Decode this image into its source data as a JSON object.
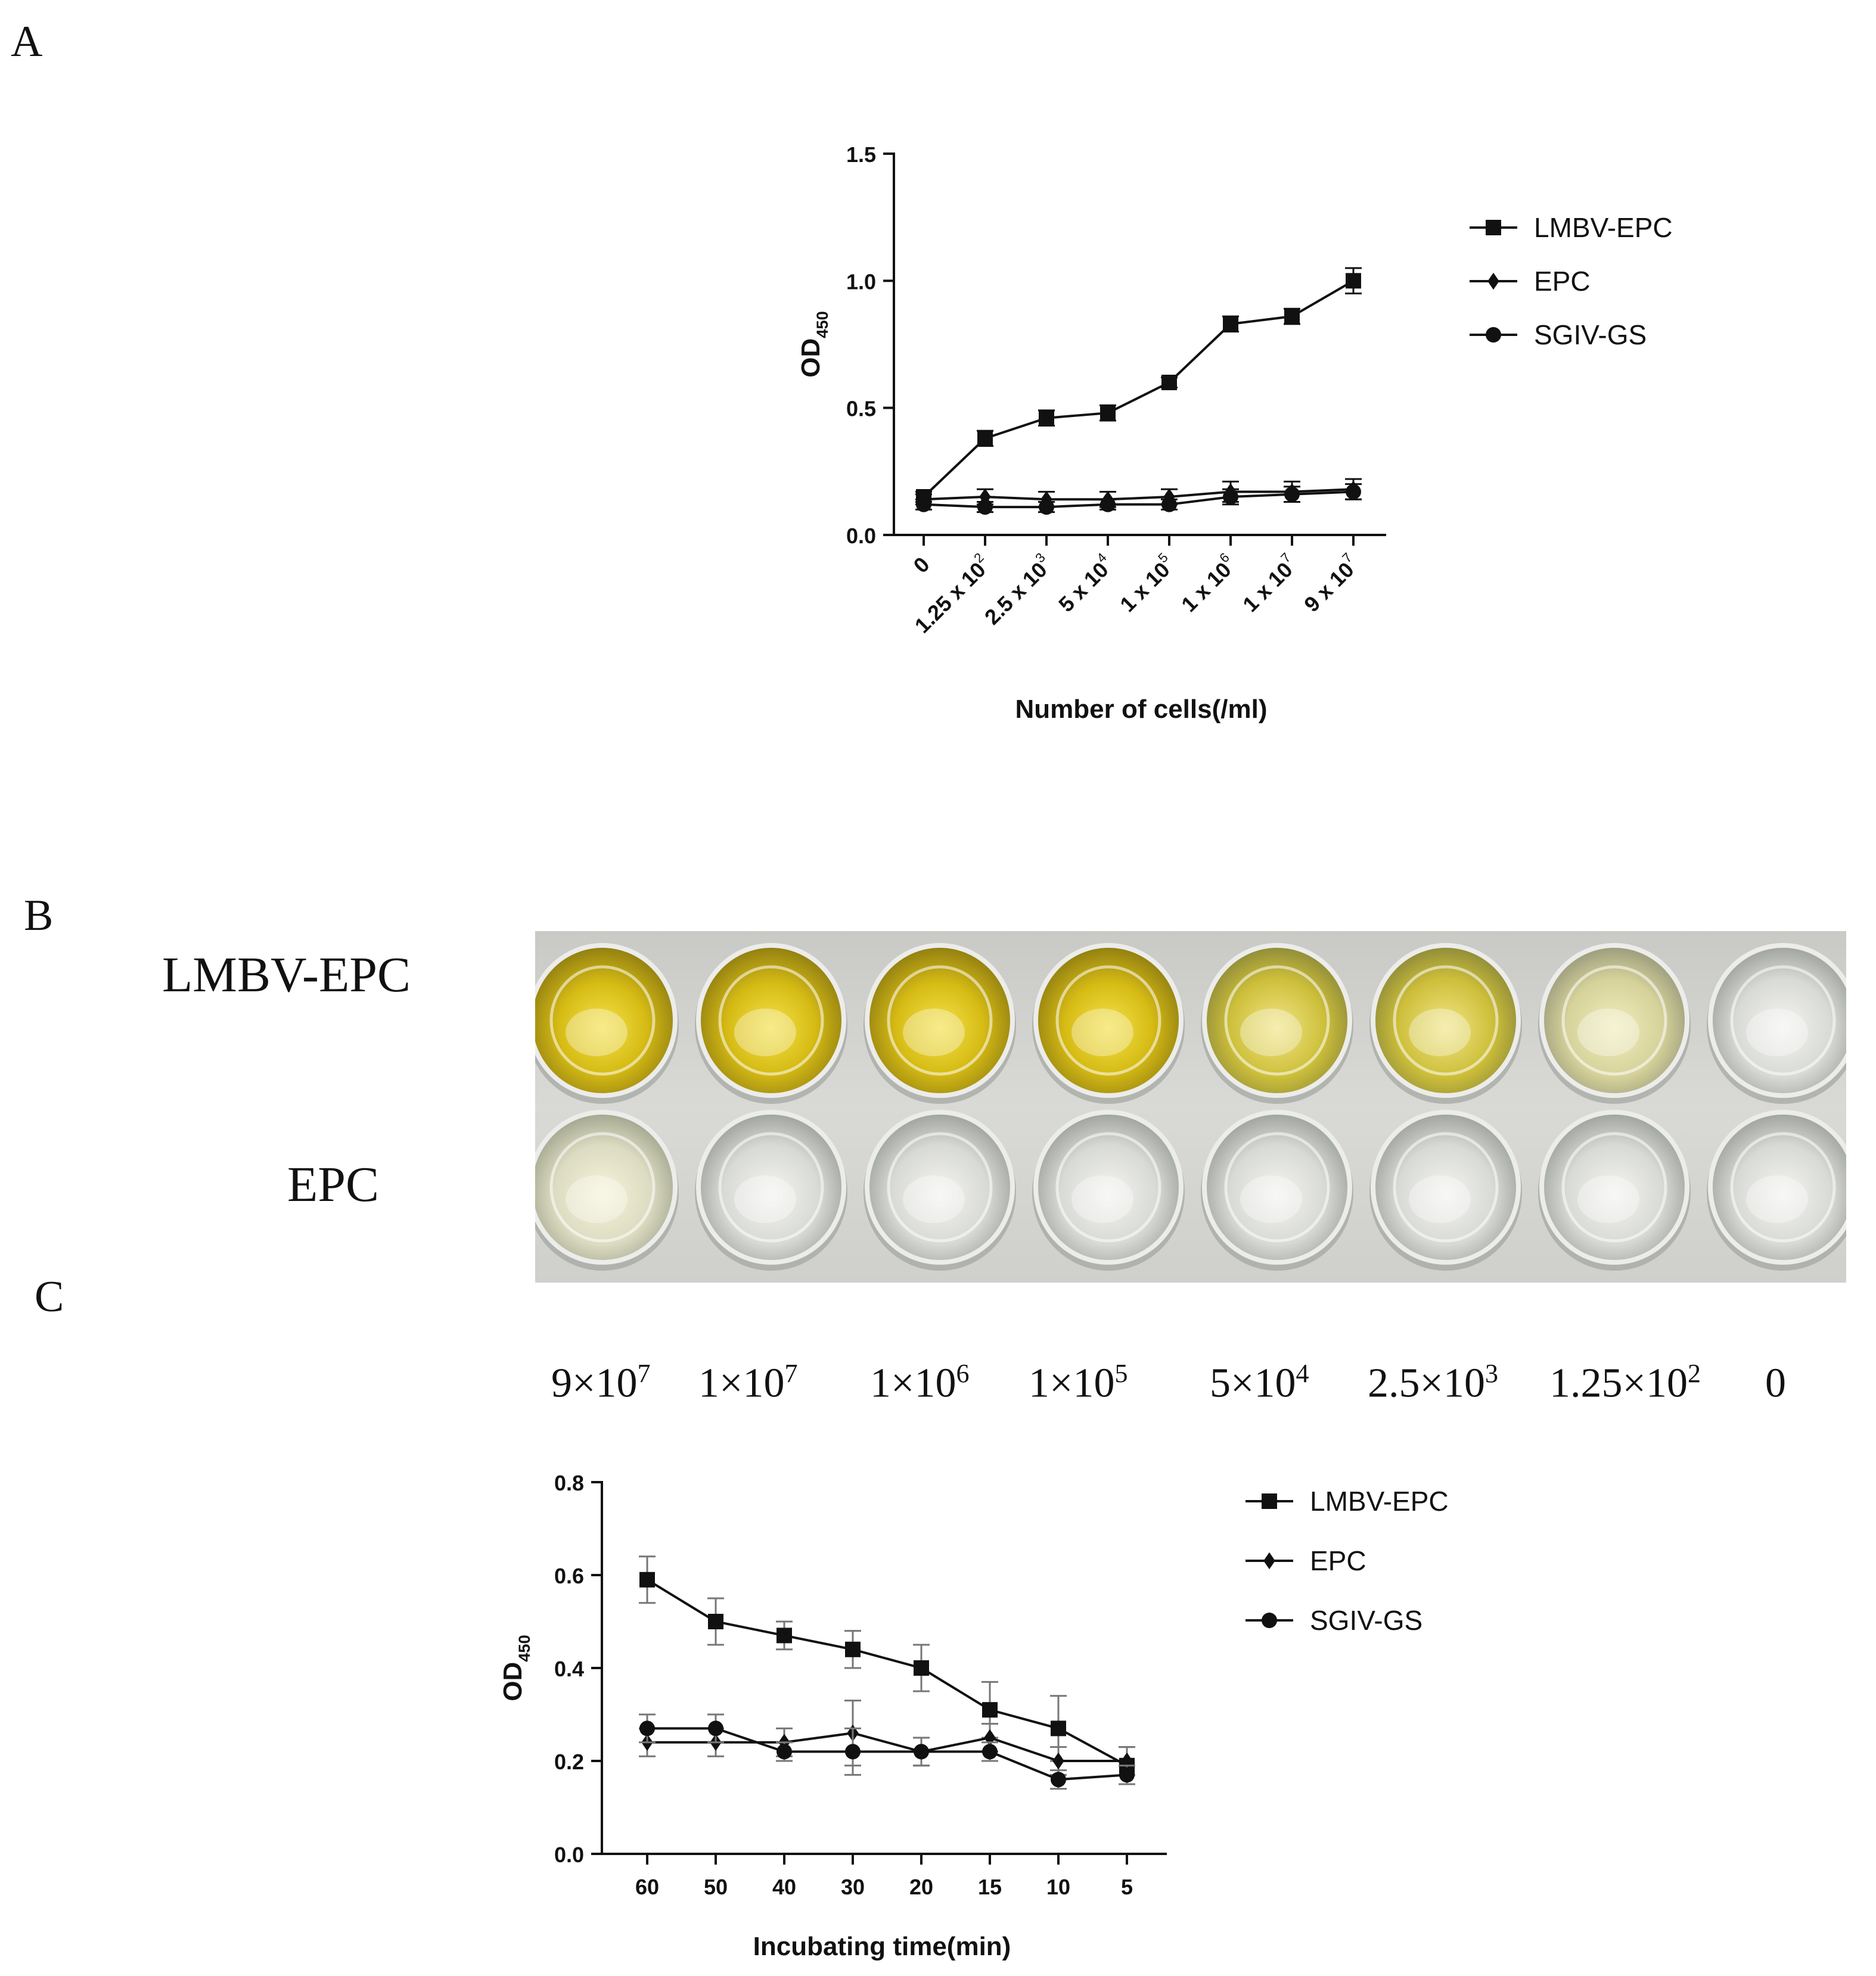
{
  "panels": {
    "a": "A",
    "b": "B",
    "c": "C"
  },
  "photo": {
    "row_labels": [
      "LMBV-EPC",
      "EPC"
    ],
    "concentrations": [
      {
        "base": "9×10",
        "exp": "7"
      },
      {
        "base": "1×10",
        "exp": "7"
      },
      {
        "base": "1×10",
        "exp": "6"
      },
      {
        "base": "1×10",
        "exp": "5"
      },
      {
        "base": "5×10",
        "exp": "4"
      },
      {
        "base": "2.5×10",
        "exp": "3"
      },
      {
        "base": "1.25×10",
        "exp": "2"
      },
      {
        "base": "0",
        "exp": ""
      }
    ]
  },
  "chart_data": [
    {
      "type": "line",
      "panel": "A",
      "ylabel": "OD",
      "ylabel_sub": "450",
      "xlabel": "Number of cells(/ml)",
      "categories": [
        "0",
        "1.25 x 10^2",
        "2.5 x 10^3",
        "5 x 10^4",
        "1 x 10^5",
        "1 x 10^6",
        "1 x 10^7",
        "9 x 10^7"
      ],
      "tick_labels": [
        {
          "base": "0",
          "exp": ""
        },
        {
          "base": "1.25 x 10",
          "exp": "2"
        },
        {
          "base": "2.5 x 10",
          "exp": "3"
        },
        {
          "base": "5 x 10",
          "exp": "4"
        },
        {
          "base": "1 x 10",
          "exp": "5"
        },
        {
          "base": "1 x 10",
          "exp": "6"
        },
        {
          "base": "1 x 10",
          "exp": "7"
        },
        {
          "base": "9 x 10",
          "exp": "7"
        }
      ],
      "ylim": [
        0,
        1.5
      ],
      "yticks": [
        "0.0",
        "0.5",
        "1.0",
        "1.5"
      ],
      "legend_position": "right",
      "series": [
        {
          "name": "LMBV-EPC",
          "marker": "square",
          "values": [
            0.15,
            0.38,
            0.46,
            0.48,
            0.6,
            0.83,
            0.86,
            1.0
          ],
          "errors": [
            0.02,
            0.03,
            0.03,
            0.03,
            0.02,
            0.03,
            0.03,
            0.05
          ]
        },
        {
          "name": "EPC",
          "marker": "diamond",
          "values": [
            0.14,
            0.15,
            0.14,
            0.14,
            0.15,
            0.17,
            0.17,
            0.18
          ],
          "errors": [
            0.02,
            0.03,
            0.03,
            0.03,
            0.03,
            0.04,
            0.04,
            0.04
          ]
        },
        {
          "name": "SGIV-GS",
          "marker": "circle",
          "values": [
            0.12,
            0.11,
            0.11,
            0.12,
            0.12,
            0.15,
            0.16,
            0.17
          ],
          "errors": [
            0.02,
            0.02,
            0.02,
            0.02,
            0.02,
            0.03,
            0.03,
            0.03
          ]
        }
      ]
    },
    {
      "type": "line",
      "panel": "C",
      "ylabel": "OD",
      "ylabel_sub": "450",
      "xlabel": "Incubating time(min)",
      "categories": [
        "60",
        "50",
        "40",
        "30",
        "20",
        "15",
        "10",
        "5"
      ],
      "ylim": [
        0,
        0.8
      ],
      "yticks": [
        "0.0",
        "0.2",
        "0.4",
        "0.6",
        "0.8"
      ],
      "legend_position": "right",
      "series": [
        {
          "name": "LMBV-EPC",
          "marker": "square",
          "values": [
            0.59,
            0.5,
            0.47,
            0.44,
            0.4,
            0.31,
            0.27,
            0.19
          ],
          "errors": [
            0.05,
            0.05,
            0.03,
            0.04,
            0.05,
            0.06,
            0.07,
            0.04
          ]
        },
        {
          "name": "EPC",
          "marker": "diamond",
          "values": [
            0.24,
            0.24,
            0.24,
            0.26,
            0.22,
            0.25,
            0.2,
            0.2
          ],
          "errors": [
            0.03,
            0.03,
            0.03,
            0.07,
            0.03,
            0.03,
            0.03,
            0.03
          ]
        },
        {
          "name": "SGIV-GS",
          "marker": "circle",
          "values": [
            0.27,
            0.27,
            0.22,
            0.22,
            0.22,
            0.22,
            0.16,
            0.17
          ],
          "errors": [
            0.03,
            0.03,
            0.02,
            0.05,
            0.03,
            0.02,
            0.02,
            0.02
          ]
        }
      ]
    }
  ]
}
